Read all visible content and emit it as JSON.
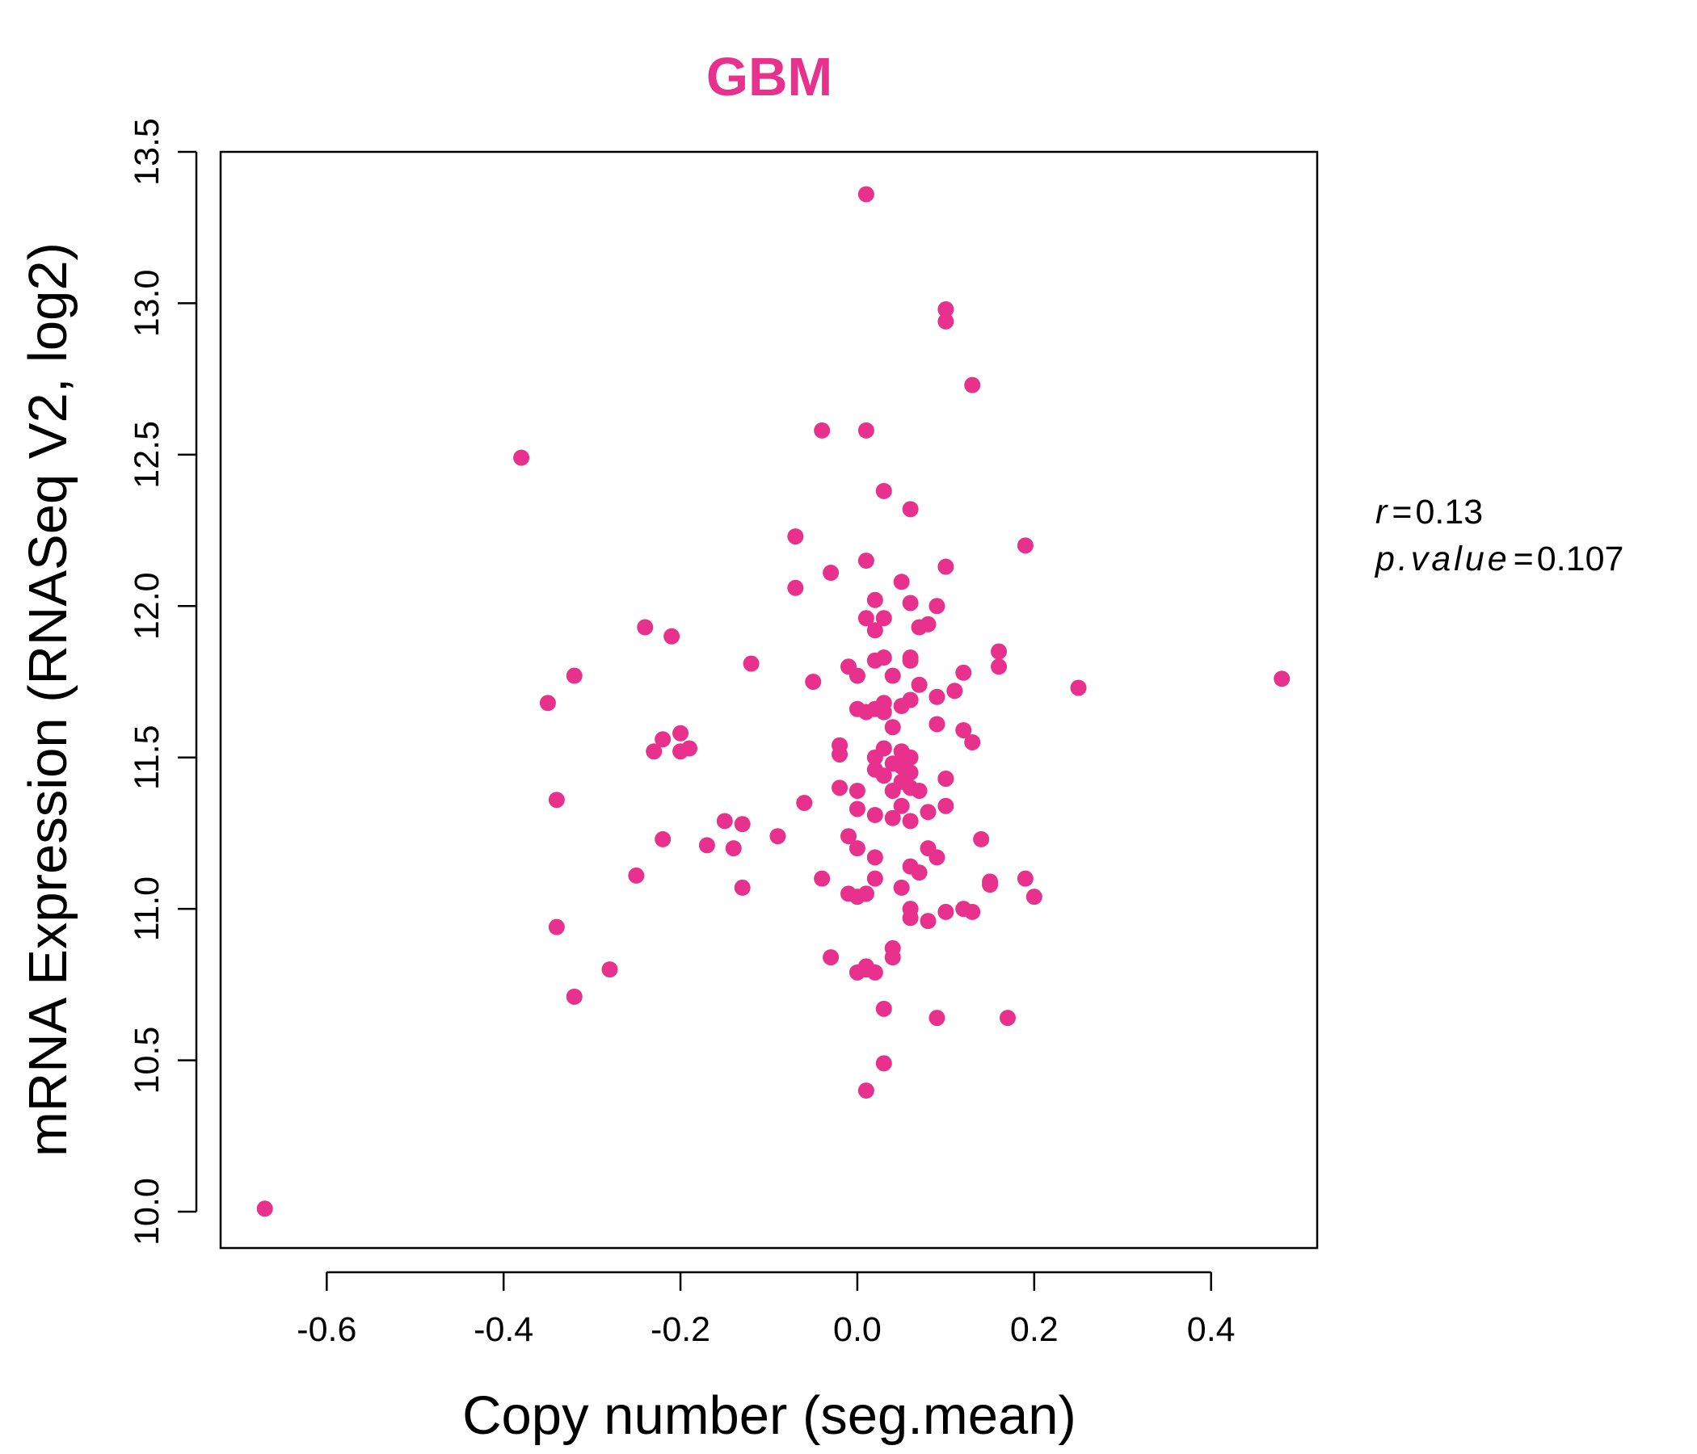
{
  "chart_data": {
    "type": "scatter",
    "title": "GBM",
    "xlabel": "Copy number (seg.mean)",
    "ylabel": "mRNA Expression (RNASeq V2, log2)",
    "xlim": [
      -0.72,
      0.52
    ],
    "ylim": [
      9.88,
      13.5
    ],
    "xticks": [
      -0.6,
      -0.4,
      -0.2,
      0.0,
      0.2,
      0.4
    ],
    "xtick_labels": [
      "-0.6",
      "-0.4",
      "-0.2",
      "0.0",
      "0.2",
      "0.4"
    ],
    "yticks": [
      10.0,
      10.5,
      11.0,
      11.5,
      12.0,
      12.5,
      13.0,
      13.5
    ],
    "ytick_labels": [
      "10.0",
      "10.5",
      "11.0",
      "11.5",
      "12.0",
      "12.5",
      "13.0",
      "13.5"
    ],
    "grid": false,
    "legend": "none",
    "colors": {
      "points": "#E8318C",
      "title": "#E8318C",
      "axis": "#000000"
    },
    "annotation": {
      "r_label": "r",
      "r_value": "0.13",
      "p_label": "p.value",
      "p_value": "0.107"
    },
    "x": [
      0.01,
      0.1,
      0.1,
      0.13,
      -0.04,
      0.01,
      -0.38,
      0.03,
      0.06,
      0.19,
      -0.07,
      0.1,
      -0.03,
      0.01,
      0.05,
      -0.07,
      0.02,
      0.09,
      0.06,
      0.01,
      0.03,
      -0.24,
      0.02,
      0.08,
      0.07,
      -0.21,
      0.16,
      0.03,
      0.06,
      0.02,
      -0.12,
      0.06,
      -0.01,
      0.16,
      0.12,
      -0.32,
      0.0,
      0.04,
      -0.05,
      0.25,
      0.48,
      0.07,
      0.11,
      0.09,
      0.06,
      -0.35,
      0.03,
      0.05,
      0.02,
      0.0,
      0.01,
      0.03,
      0.09,
      -0.2,
      -0.22,
      0.04,
      0.12,
      0.13,
      -0.02,
      -0.19,
      0.03,
      -0.23,
      0.05,
      -0.2,
      -0.02,
      0.02,
      0.06,
      0.04,
      0.05,
      0.02,
      0.06,
      0.1,
      0.03,
      0.05,
      0.1,
      0.06,
      0.04,
      -0.02,
      0.07,
      0.0,
      -0.34,
      -0.06,
      0.1,
      0.05,
      0.0,
      0.08,
      0.02,
      -0.15,
      0.04,
      -0.13,
      0.06,
      -0.01,
      0.08,
      -0.09,
      -0.22,
      0.14,
      -0.17,
      0.0,
      -0.14,
      0.09,
      0.02,
      0.06,
      0.07,
      -0.25,
      0.02,
      0.19,
      0.15,
      -0.04,
      0.05,
      0.01,
      0.0,
      0.15,
      -0.13,
      -0.01,
      0.2,
      0.01,
      0.06,
      0.12,
      0.13,
      0.1,
      0.06,
      0.08,
      -0.34,
      0.04,
      0.04,
      -0.03,
      0.01,
      0.01,
      0.0,
      -0.28,
      0.02,
      -0.32,
      0.03,
      0.09,
      0.17,
      0.03,
      0.01,
      -0.67
    ],
    "y": [
      13.36,
      12.98,
      12.94,
      12.73,
      12.58,
      12.58,
      12.49,
      12.38,
      12.32,
      12.2,
      12.23,
      12.13,
      12.11,
      12.15,
      12.08,
      12.06,
      12.02,
      12.0,
      12.01,
      11.96,
      11.96,
      11.93,
      11.92,
      11.94,
      11.93,
      11.9,
      11.85,
      11.83,
      11.83,
      11.82,
      11.81,
      11.82,
      11.8,
      11.8,
      11.78,
      11.77,
      11.77,
      11.77,
      11.75,
      11.73,
      11.76,
      11.74,
      11.72,
      11.7,
      11.69,
      11.68,
      11.68,
      11.67,
      11.66,
      11.66,
      11.65,
      11.65,
      11.61,
      11.58,
      11.56,
      11.6,
      11.59,
      11.55,
      11.54,
      11.53,
      11.53,
      11.52,
      11.52,
      11.52,
      11.51,
      11.5,
      11.5,
      11.48,
      11.47,
      11.46,
      11.45,
      11.43,
      11.44,
      11.42,
      11.43,
      11.4,
      11.39,
      11.4,
      11.39,
      11.39,
      11.36,
      11.35,
      11.34,
      11.34,
      11.33,
      11.32,
      11.31,
      11.29,
      11.3,
      11.28,
      11.29,
      11.24,
      11.2,
      11.24,
      11.23,
      11.23,
      11.21,
      11.2,
      11.2,
      11.17,
      11.17,
      11.14,
      11.12,
      11.11,
      11.1,
      11.1,
      11.09,
      11.1,
      11.07,
      11.05,
      11.04,
      11.08,
      11.07,
      11.05,
      11.04,
      11.05,
      11.0,
      11.0,
      10.99,
      10.99,
      10.97,
      10.96,
      10.94,
      10.87,
      10.84,
      10.84,
      10.81,
      10.8,
      10.79,
      10.8,
      10.79,
      10.71,
      10.67,
      10.64,
      10.64,
      10.49,
      10.4,
      10.01
    ]
  }
}
